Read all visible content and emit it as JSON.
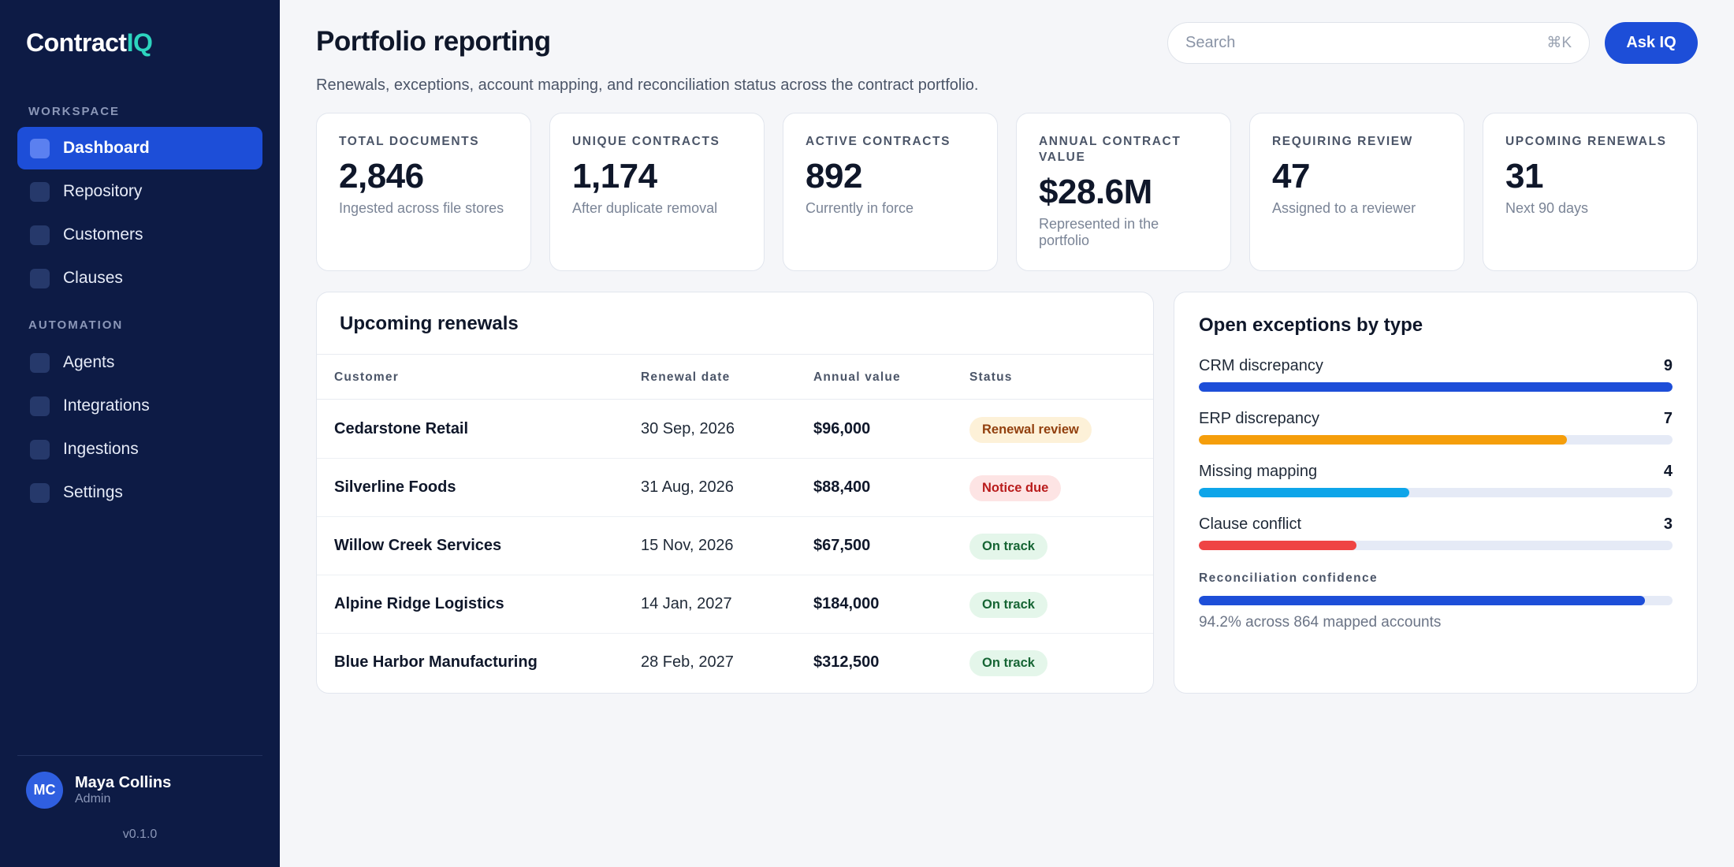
{
  "brand": {
    "name_main": "Contract",
    "name_accent": "IQ",
    "accent_color": "#2dd4bf"
  },
  "sidebar": {
    "sections": [
      {
        "label": "WORKSPACE",
        "items": [
          {
            "label": "Dashboard",
            "active": true
          },
          {
            "label": "Repository",
            "active": false
          },
          {
            "label": "Customers",
            "active": false
          },
          {
            "label": "Clauses",
            "active": false
          }
        ]
      },
      {
        "label": "AUTOMATION",
        "items": [
          {
            "label": "Agents",
            "active": false
          },
          {
            "label": "Integrations",
            "active": false
          },
          {
            "label": "Ingestions",
            "active": false
          },
          {
            "label": "Settings",
            "active": false
          }
        ]
      }
    ],
    "user": {
      "initials": "MC",
      "name": "Maya Collins",
      "role": "Admin"
    },
    "version": "v0.1.0"
  },
  "header": {
    "title": "Portfolio reporting",
    "subtitle": "Renewals, exceptions, account mapping, and reconciliation status across the contract portfolio.",
    "search_placeholder": "Search",
    "search_shortcut": "⌘K",
    "ask_label": "Ask IQ"
  },
  "kpis": [
    {
      "label": "Total documents",
      "value": "2,846",
      "note": "Ingested across file stores"
    },
    {
      "label": "Unique contracts",
      "value": "1,174",
      "note": "After duplicate removal"
    },
    {
      "label": "Active contracts",
      "value": "892",
      "note": "Currently in force"
    },
    {
      "label": "Annual contract value",
      "value": "$28.6M",
      "note": "Represented in the portfolio"
    },
    {
      "label": "Requiring review",
      "value": "47",
      "note": "Assigned to a reviewer"
    },
    {
      "label": "Upcoming renewals",
      "value": "31",
      "note": "Next 90 days"
    }
  ],
  "renewals": {
    "title": "Upcoming renewals",
    "columns": [
      "Customer",
      "Renewal date",
      "Annual value",
      "Status"
    ],
    "rows": [
      {
        "customer": "Cedarstone Retail",
        "date": "30 Sep, 2026",
        "value": "$96,000",
        "status": "Renewal review",
        "status_kind": "renewal"
      },
      {
        "customer": "Silverline Foods",
        "date": "31 Aug, 2026",
        "value": "$88,400",
        "status": "Notice due",
        "status_kind": "notice"
      },
      {
        "customer": "Willow Creek Services",
        "date": "15 Nov, 2026",
        "value": "$67,500",
        "status": "On track",
        "status_kind": "ontrack"
      },
      {
        "customer": "Alpine Ridge Logistics",
        "date": "14 Jan, 2027",
        "value": "$184,000",
        "status": "On track",
        "status_kind": "ontrack"
      },
      {
        "customer": "Blue Harbor Manufacturing",
        "date": "28 Feb, 2027",
        "value": "$312,500",
        "status": "On track",
        "status_kind": "ontrack"
      }
    ]
  },
  "exceptions": {
    "title": "Open exceptions by type",
    "max": 9,
    "items": [
      {
        "label": "CRM discrepancy",
        "count": 9,
        "color": "#1d4ed8"
      },
      {
        "label": "ERP discrepancy",
        "count": 7,
        "color": "#f59e0b"
      },
      {
        "label": "Missing mapping",
        "count": 4,
        "color": "#0ea5e9"
      },
      {
        "label": "Clause conflict",
        "count": 3,
        "color": "#ef4444"
      }
    ],
    "reconciliation": {
      "label": "Reconciliation confidence",
      "percent": 94.2,
      "note": "94.2% across 864 mapped accounts"
    }
  }
}
